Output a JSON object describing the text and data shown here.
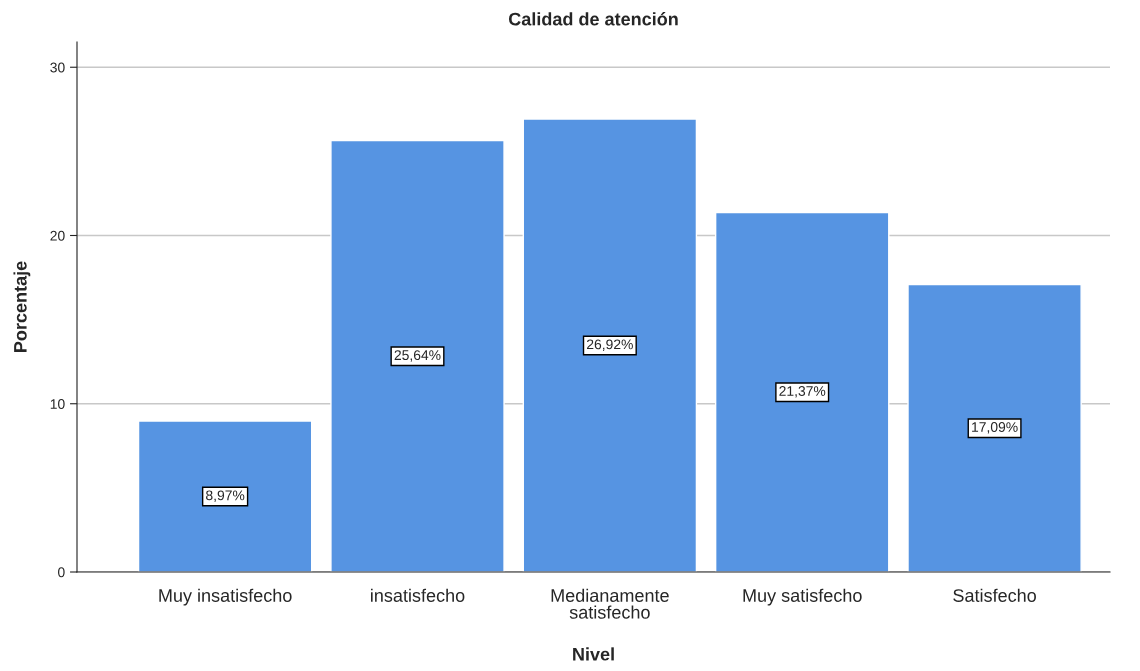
{
  "chart_data": {
    "type": "bar",
    "title": "Calidad de atención",
    "xlabel": "Nivel",
    "ylabel": "Porcentaje",
    "categories": [
      "Muy insatisfecho",
      "insatisfecho",
      "Medianamente\nsatisfecho",
      "Muy satisfecho",
      "Satisfecho"
    ],
    "values": [
      8.97,
      25.64,
      26.92,
      21.37,
      17.09
    ],
    "value_labels": [
      "8,97%",
      "25,64%",
      "26,92%",
      "21,37%",
      "17,09%"
    ],
    "color": "#5694e2",
    "ylim": [
      0,
      31.5
    ],
    "yticks": [
      0,
      10,
      20,
      30
    ],
    "grid": "y"
  }
}
